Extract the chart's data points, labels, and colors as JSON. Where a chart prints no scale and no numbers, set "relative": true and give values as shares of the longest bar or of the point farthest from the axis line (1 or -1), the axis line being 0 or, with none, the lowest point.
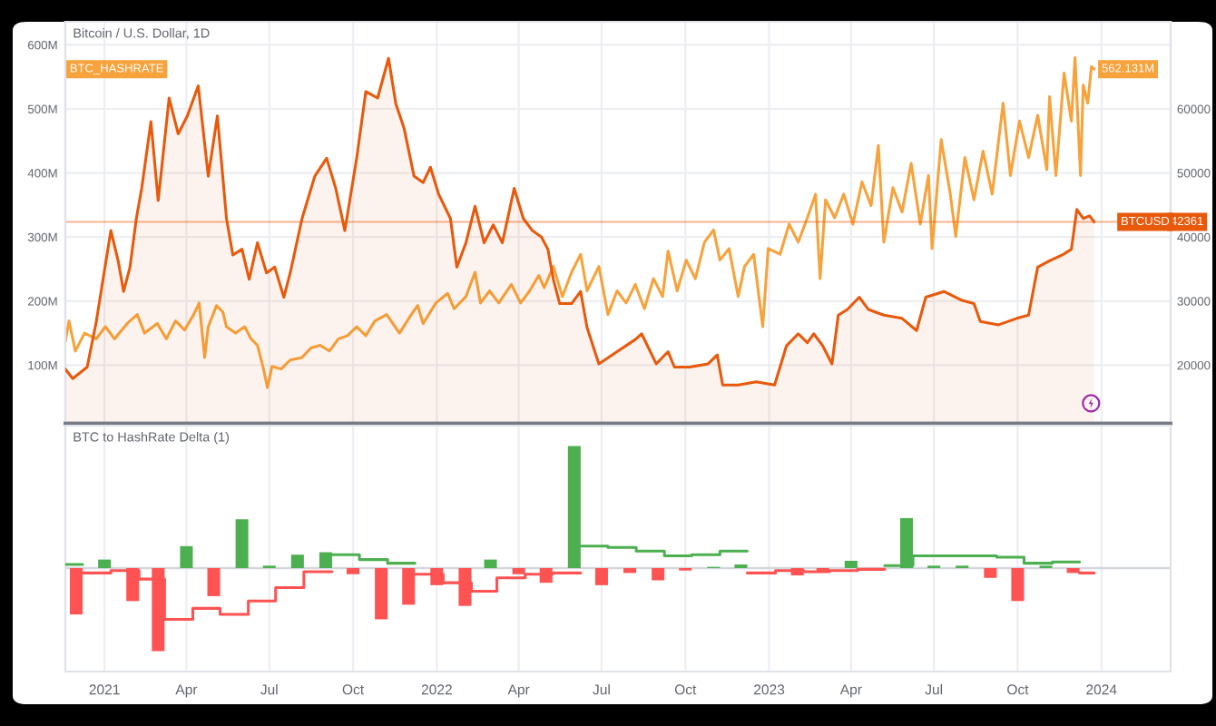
{
  "chart_data": [
    {
      "type": "line",
      "title": "Bitcoin / U.S. Dollar, 1D",
      "xlim": [
        "2020-11-19",
        "2024-03-17"
      ],
      "xticks": [
        {
          "value": "2021-01-01",
          "label": null
        },
        {
          "value": "2021-04-01",
          "label": null
        },
        {
          "value": "2021-07-01",
          "label": null
        },
        {
          "value": "2021-10-01",
          "label": null
        },
        {
          "value": "2022-01-01",
          "label": null
        },
        {
          "value": "2022-04-01",
          "label": null
        },
        {
          "value": "2022-07-01",
          "label": null
        },
        {
          "value": "2022-10-01",
          "label": null
        },
        {
          "value": "2023-01-01",
          "label": null
        },
        {
          "value": "2023-04-01",
          "label": null
        },
        {
          "value": "2023-07-01",
          "label": null
        },
        {
          "value": "2023-10-01",
          "label": null
        },
        {
          "value": "2024-01-01",
          "label": null
        }
      ],
      "ylim": [
        9,
        636
      ],
      "yticks": [
        {
          "value": 100,
          "label": "100M"
        },
        {
          "value": 200,
          "label": "200M"
        },
        {
          "value": 300,
          "label": "300M"
        },
        {
          "value": 400,
          "label": "400M"
        },
        {
          "value": 500,
          "label": "500M"
        },
        {
          "value": 600,
          "label": "600M"
        }
      ],
      "y2lim": [
        10900,
        73600
      ],
      "y2ticks": [
        20000,
        30000,
        40000,
        50000,
        60000
      ],
      "tick_labels": "y",
      "grid": true,
      "ref_lines": [
        {
          "axis": "y2",
          "value": 42361,
          "label": "42361",
          "color": "#e8590c"
        }
      ],
      "series": [
        {
          "name": "BTCUSD",
          "type": "area",
          "axis": "y2",
          "color": "#e8590c",
          "x": [
            "2020-11-19",
            "2020-11-27",
            "2020-12-13",
            "2020-12-23",
            "2021-01-08",
            "2021-01-16",
            "2021-01-22",
            "2021-01-29",
            "2021-02-05",
            "2021-02-11",
            "2021-02-21",
            "2021-03-01",
            "2021-03-13",
            "2021-03-23",
            "2021-04-02",
            "2021-04-14",
            "2021-04-25",
            "2021-05-05",
            "2021-05-15",
            "2021-05-22",
            "2021-06-01",
            "2021-06-09",
            "2021-06-18",
            "2021-06-28",
            "2021-07-07",
            "2021-07-17",
            "2021-07-24",
            "2021-08-06",
            "2021-08-20",
            "2021-09-02",
            "2021-09-12",
            "2021-09-22",
            "2021-10-05",
            "2021-10-15",
            "2021-10-28",
            "2021-11-09",
            "2021-11-17",
            "2021-11-26",
            "2021-12-07",
            "2021-12-17",
            "2021-12-25",
            "2022-01-03",
            "2022-01-16",
            "2022-01-23",
            "2022-02-02",
            "2022-02-12",
            "2022-02-22",
            "2022-03-04",
            "2022-03-14",
            "2022-03-27",
            "2022-04-06",
            "2022-04-16",
            "2022-04-26",
            "2022-05-03",
            "2022-05-09",
            "2022-05-16",
            "2022-05-29",
            "2022-06-08",
            "2022-06-15",
            "2022-06-28",
            "2022-07-18",
            "2022-08-07",
            "2022-08-14",
            "2022-08-30",
            "2022-09-12",
            "2022-09-19",
            "2022-10-06",
            "2022-10-26",
            "2022-11-05",
            "2022-11-11",
            "2022-11-28",
            "2022-12-18",
            "2023-01-07",
            "2023-01-13",
            "2023-01-20",
            "2023-02-02",
            "2023-02-12",
            "2023-02-19",
            "2023-03-01",
            "2023-03-11",
            "2023-03-18",
            "2023-03-28",
            "2023-04-10",
            "2023-04-20",
            "2023-05-07",
            "2023-05-27",
            "2023-06-12",
            "2023-06-22",
            "2023-07-12",
            "2023-08-01",
            "2023-08-14",
            "2023-08-21",
            "2023-09-10",
            "2023-09-30",
            "2023-10-13",
            "2023-10-23",
            "2023-11-05",
            "2023-11-19",
            "2023-11-29",
            "2023-12-05",
            "2023-12-12",
            "2023-12-19",
            "2023-12-24"
          ],
          "values": [
            19400,
            17900,
            19700,
            26800,
            41000,
            36300,
            31500,
            35300,
            42900,
            47700,
            58000,
            45700,
            61700,
            56100,
            58900,
            63600,
            49500,
            58900,
            42900,
            37200,
            38100,
            33400,
            39100,
            34400,
            35300,
            30600,
            34400,
            42900,
            49500,
            52300,
            47600,
            41000,
            52300,
            62700,
            61700,
            67900,
            60800,
            57000,
            49500,
            48500,
            50900,
            46700,
            42900,
            35300,
            39100,
            44800,
            39100,
            41900,
            39100,
            47600,
            42900,
            41000,
            40000,
            38100,
            33400,
            29600,
            29600,
            31500,
            25900,
            20200,
            22100,
            24000,
            24900,
            20200,
            22100,
            19700,
            19700,
            20200,
            21600,
            16900,
            16900,
            17400,
            16900,
            19700,
            23000,
            24900,
            23500,
            24900,
            23000,
            20200,
            27800,
            28700,
            30600,
            28700,
            27800,
            27300,
            25400,
            30600,
            31500,
            30100,
            29600,
            26800,
            26300,
            27300,
            27800,
            35300,
            36300,
            37200,
            38100,
            44300,
            42900,
            43300,
            42361
          ]
        },
        {
          "name": "BTC_HASHRATE",
          "color": "#f7a23b",
          "x": [
            "2020-11-19",
            "2020-11-23",
            "2020-11-30",
            "2020-12-10",
            "2020-12-23",
            "2021-01-02",
            "2021-01-12",
            "2021-01-26",
            "2021-02-06",
            "2021-02-14",
            "2021-02-28",
            "2021-03-10",
            "2021-03-20",
            "2021-03-30",
            "2021-04-09",
            "2021-04-15",
            "2021-04-21",
            "2021-04-25",
            "2021-05-04",
            "2021-05-11",
            "2021-05-15",
            "2021-05-25",
            "2021-06-04",
            "2021-06-11",
            "2021-06-18",
            "2021-06-24",
            "2021-06-29",
            "2021-07-04",
            "2021-07-14",
            "2021-07-24",
            "2021-08-06",
            "2021-08-16",
            "2021-08-26",
            "2021-09-05",
            "2021-09-15",
            "2021-09-25",
            "2021-10-05",
            "2021-10-15",
            "2021-10-25",
            "2021-11-07",
            "2021-11-21",
            "2021-12-04",
            "2021-12-11",
            "2021-12-17",
            "2021-12-31",
            "2022-01-13",
            "2022-01-20",
            "2022-02-02",
            "2022-02-12",
            "2022-02-18",
            "2022-02-28",
            "2022-03-10",
            "2022-03-24",
            "2022-04-03",
            "2022-04-13",
            "2022-04-23",
            "2022-04-29",
            "2022-05-09",
            "2022-05-19",
            "2022-05-29",
            "2022-06-08",
            "2022-06-15",
            "2022-06-28",
            "2022-07-08",
            "2022-07-18",
            "2022-07-28",
            "2022-08-07",
            "2022-08-17",
            "2022-08-27",
            "2022-09-06",
            "2022-09-12",
            "2022-09-22",
            "2022-10-02",
            "2022-10-12",
            "2022-10-22",
            "2022-11-01",
            "2022-11-08",
            "2022-11-18",
            "2022-11-28",
            "2022-12-05",
            "2022-12-15",
            "2022-12-25",
            "2022-12-31",
            "2023-01-13",
            "2023-01-23",
            "2023-02-02",
            "2023-02-12",
            "2023-02-21",
            "2023-02-26",
            "2023-03-04",
            "2023-03-14",
            "2023-03-24",
            "2023-04-03",
            "2023-04-13",
            "2023-04-23",
            "2023-05-01",
            "2023-05-07",
            "2023-05-17",
            "2023-05-27",
            "2023-06-06",
            "2023-06-16",
            "2023-06-25",
            "2023-06-29",
            "2023-07-09",
            "2023-07-19",
            "2023-07-25",
            "2023-08-04",
            "2023-08-14",
            "2023-08-24",
            "2023-09-03",
            "2023-09-15",
            "2023-09-23",
            "2023-10-03",
            "2023-10-13",
            "2023-10-23",
            "2023-11-02",
            "2023-11-05",
            "2023-11-12",
            "2023-11-21",
            "2023-11-29",
            "2023-12-03",
            "2023-12-09",
            "2023-12-12",
            "2023-12-17",
            "2023-12-21",
            "2023-12-24"
          ],
          "values": [
            137,
            169,
            122,
            150,
            141,
            160,
            141,
            165,
            179,
            150,
            165,
            141,
            169,
            155,
            179,
            197,
            112,
            160,
            193,
            183,
            160,
            150,
            160,
            141,
            131,
            98,
            65,
            98,
            94,
            108,
            112,
            127,
            131,
            122,
            141,
            146,
            160,
            146,
            169,
            179,
            150,
            179,
            193,
            165,
            197,
            212,
            188,
            207,
            245,
            197,
            216,
            197,
            226,
            197,
            216,
            240,
            221,
            254,
            207,
            245,
            273,
            216,
            254,
            179,
            216,
            197,
            226,
            188,
            235,
            207,
            278,
            216,
            264,
            235,
            292,
            311,
            264,
            282,
            207,
            254,
            273,
            160,
            282,
            273,
            320,
            292,
            330,
            367,
            235,
            358,
            330,
            367,
            320,
            386,
            349,
            443,
            292,
            377,
            339,
            415,
            320,
            396,
            282,
            452,
            367,
            301,
            424,
            358,
            434,
            367,
            509,
            396,
            481,
            424,
            490,
            405,
            519,
            396,
            556,
            481,
            580,
            396,
            537,
            509,
            566,
            562.131
          ],
          "value_labels": [
            null,
            null,
            null,
            null,
            null,
            null,
            null,
            null,
            null,
            null,
            null,
            null,
            null,
            null,
            null,
            null,
            null,
            null,
            null,
            null,
            null,
            null,
            null,
            null,
            null,
            null,
            null,
            null,
            null,
            null,
            null,
            null,
            null,
            null,
            null,
            null,
            null,
            null,
            null,
            null,
            null,
            null,
            null,
            null,
            null,
            null,
            null,
            null,
            null,
            null,
            null,
            null,
            null,
            null,
            null,
            null,
            null,
            null,
            null,
            null,
            null,
            null,
            null,
            null,
            null,
            null,
            null,
            null,
            null,
            null,
            null,
            null,
            null,
            null,
            null,
            null,
            null,
            null,
            null,
            null,
            null,
            null,
            null,
            null,
            null,
            null,
            null,
            null,
            null,
            null,
            null,
            null,
            null,
            null,
            null,
            null,
            null,
            null,
            null,
            null,
            null,
            null,
            null,
            null,
            null,
            null,
            null,
            null,
            null,
            null,
            null,
            null,
            null,
            null,
            null,
            null,
            null,
            null,
            null,
            null,
            null,
            null,
            null,
            null,
            null,
            "562.131M"
          ]
        }
      ]
    },
    {
      "type": "bar",
      "title": "BTC to HashRate Delta (1)",
      "relative": true,
      "xlim": [
        "2020-11-19",
        "2024-03-17"
      ],
      "xticks": [
        {
          "value": "2021-01-01",
          "label": "2021"
        },
        {
          "value": "2021-04-01",
          "label": "Apr"
        },
        {
          "value": "2021-07-01",
          "label": "Jul"
        },
        {
          "value": "2021-10-01",
          "label": "Oct"
        },
        {
          "value": "2022-01-01",
          "label": "2022"
        },
        {
          "value": "2022-04-01",
          "label": "Apr"
        },
        {
          "value": "2022-07-01",
          "label": "Jul"
        },
        {
          "value": "2022-10-01",
          "label": "Oct"
        },
        {
          "value": "2023-01-01",
          "label": "2023"
        },
        {
          "value": "2023-04-01",
          "label": "Apr"
        },
        {
          "value": "2023-07-01",
          "label": "Jul"
        },
        {
          "value": "2023-10-01",
          "label": "Oct"
        },
        {
          "value": "2024-01-01",
          "label": "2024"
        }
      ],
      "grid": "x",
      "series": [
        {
          "x": [
            "2020-12-01",
            "2021-01-01",
            "2021-02-01",
            "2021-03-01",
            "2021-04-01",
            "2021-05-01",
            "2021-06-01",
            "2021-07-01",
            "2021-08-01",
            "2021-09-01",
            "2021-10-01",
            "2021-11-01",
            "2021-12-01",
            "2022-01-01",
            "2022-02-01",
            "2022-03-01",
            "2022-04-01",
            "2022-05-01",
            "2022-06-01",
            "2022-07-01",
            "2022-08-01",
            "2022-09-01",
            "2022-10-01",
            "2022-11-01",
            "2022-12-01",
            "2023-01-01",
            "2023-02-01",
            "2023-03-01",
            "2023-04-01",
            "2023-05-01",
            "2023-06-01",
            "2023-07-01",
            "2023-08-01",
            "2023-09-01",
            "2023-10-01",
            "2023-11-01",
            "2023-12-01"
          ],
          "values": [
            -0.38,
            0.07,
            -0.27,
            -0.68,
            0.18,
            -0.23,
            0.4,
            0.02,
            0.11,
            0.13,
            -0.05,
            -0.42,
            -0.3,
            -0.14,
            -0.31,
            0.07,
            -0.05,
            -0.12,
            1,
            -0.14,
            -0.04,
            -0.1,
            -0.02,
            0.01,
            0.03,
            null,
            -0.06,
            -0.03,
            0.06,
            null,
            0.41,
            0.02,
            0.02,
            -0.08,
            -0.27,
            0.02,
            -0.04
          ],
          "colors": [
            "#ff5252",
            "#4caf50",
            "#ff5252",
            "#ff5252",
            "#4caf50",
            "#ff5252",
            "#4caf50",
            "#4caf50",
            "#4caf50",
            "#4caf50",
            "#ff5252",
            "#ff5252",
            "#ff5252",
            "#ff5252",
            "#ff5252",
            "#4caf50",
            "#ff5252",
            "#ff5252",
            "#4caf50",
            "#ff5252",
            "#ff5252",
            "#ff5252",
            "#ff5252",
            "#4caf50",
            "#4caf50",
            "#ff5252",
            "#ff5252",
            "#ff5252",
            "#4caf50",
            "#4caf50",
            "#4caf50",
            "#4caf50",
            "#4caf50",
            "#ff5252",
            "#ff5252",
            "#4caf50",
            "#ff5252"
          ]
        },
        {
          "type": "line",
          "color": "#4caf50",
          "x": [
            "2020-11-19",
            "2020-12-08"
          ],
          "values": [
            0.03,
            0.03
          ]
        },
        {
          "type": "line",
          "color": "#ff5252",
          "x": [
            "2020-12-08",
            "2021-01-08",
            "2021-01-08",
            "2021-02-08",
            "2021-02-08",
            "2021-03-08",
            "2021-03-08",
            "2021-04-08",
            "2021-04-08",
            "2021-05-08",
            "2021-05-08",
            "2021-06-08",
            "2021-06-08",
            "2021-07-08",
            "2021-07-08",
            "2021-08-08",
            "2021-08-08",
            "2021-09-08"
          ],
          "values": [
            -0.04,
            -0.04,
            -0.02,
            -0.02,
            -0.09,
            -0.09,
            -0.42,
            -0.42,
            -0.33,
            -0.33,
            -0.38,
            -0.38,
            -0.27,
            -0.27,
            -0.16,
            -0.16,
            -0.03,
            -0.03
          ]
        },
        {
          "type": "line",
          "color": "#4caf50",
          "x": [
            "2021-09-08",
            "2021-10-08",
            "2021-10-08",
            "2021-11-08",
            "2021-11-08",
            "2021-12-08"
          ],
          "values": [
            0.11,
            0.11,
            0.07,
            0.07,
            0.04,
            0.04
          ]
        },
        {
          "type": "line",
          "color": "#ff5252",
          "x": [
            "2021-12-08",
            "2022-01-08",
            "2022-01-08",
            "2022-02-08",
            "2022-02-08",
            "2022-03-08",
            "2022-03-08",
            "2022-04-08",
            "2022-04-08",
            "2022-05-08",
            "2022-05-08",
            "2022-06-08"
          ],
          "values": [
            -0.05,
            -0.05,
            -0.12,
            -0.12,
            -0.19,
            -0.19,
            -0.08,
            -0.08,
            -0.05,
            -0.05,
            -0.04,
            -0.04
          ]
        },
        {
          "type": "line",
          "color": "#4caf50",
          "x": [
            "2022-06-08",
            "2022-07-08",
            "2022-07-08",
            "2022-08-08",
            "2022-08-08",
            "2022-09-08",
            "2022-09-08",
            "2022-10-08",
            "2022-10-08",
            "2022-11-08",
            "2022-11-08",
            "2022-12-08"
          ],
          "values": [
            0.18,
            0.18,
            0.17,
            0.17,
            0.14,
            0.14,
            0.1,
            0.1,
            0.11,
            0.11,
            0.14,
            0.14
          ]
        },
        {
          "type": "line",
          "color": "#ff5252",
          "x": [
            "2022-12-08",
            "2023-01-08",
            "2023-01-08",
            "2023-02-08",
            "2023-02-08",
            "2023-03-08",
            "2023-03-08",
            "2023-04-08",
            "2023-04-08",
            "2023-05-08"
          ],
          "values": [
            -0.04,
            -0.04,
            -0.02,
            -0.02,
            -0.03,
            -0.03,
            -0.02,
            -0.02,
            -0.01,
            -0.01
          ]
        },
        {
          "type": "line",
          "color": "#4caf50",
          "x": [
            "2023-05-08",
            "2023-06-08",
            "2023-06-08",
            "2023-09-08",
            "2023-09-08",
            "2023-10-08",
            "2023-10-08",
            "2023-11-08",
            "2023-11-08",
            "2023-12-08"
          ],
          "values": [
            0.02,
            0.02,
            0.1,
            0.1,
            0.09,
            0.09,
            0.04,
            0.04,
            0.05,
            0.05
          ]
        },
        {
          "type": "line",
          "color": "#ff5252",
          "x": [
            "2023-12-08",
            "2023-12-24"
          ],
          "values": [
            -0.04,
            -0.04
          ]
        }
      ]
    }
  ]
}
